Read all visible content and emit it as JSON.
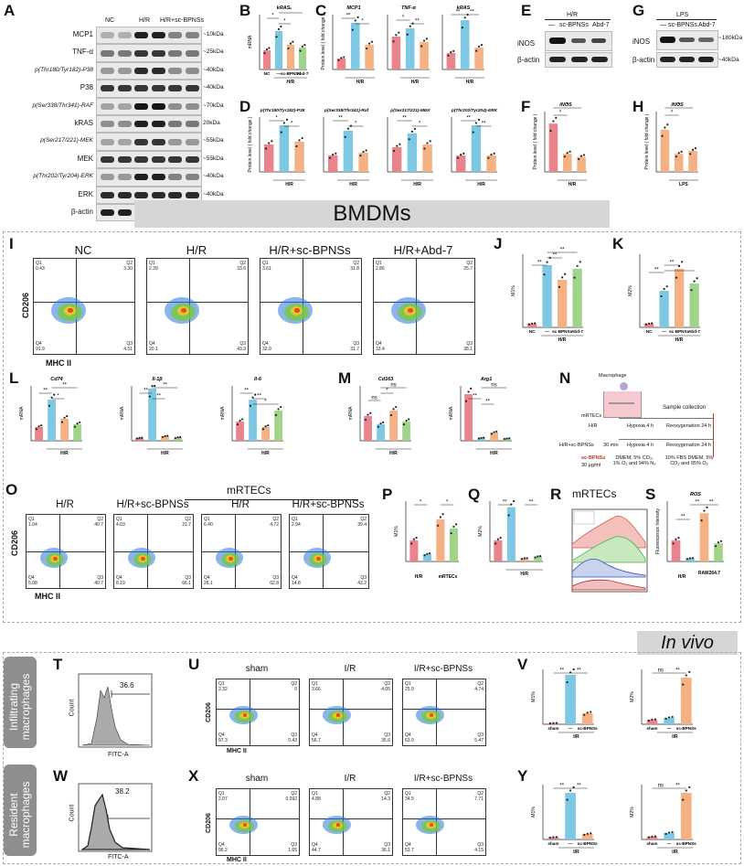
{
  "panel_letters": [
    "A",
    "B",
    "C",
    "D",
    "E",
    "F",
    "G",
    "H",
    "I",
    "J",
    "K",
    "L",
    "M",
    "N",
    "O",
    "P",
    "Q",
    "R",
    "S",
    "T",
    "U",
    "V",
    "W",
    "X",
    "Y"
  ],
  "panel_A": {
    "groups": [
      "NC",
      "H/R",
      "H/R+sc-BPNSs"
    ],
    "rows": [
      "MCP1",
      "TNF-α",
      "p(Thr180/Tyr182)-P38",
      "P38",
      "p(Ser338/Thr341)-RAF",
      "kRAS",
      "p(Ser217/221)-MEK",
      "MEK",
      "p(Thr202/Tyr204)-ERK",
      "ERK",
      "β-actin"
    ],
    "kda": [
      "~10kDa",
      "~25kDa",
      "~40kDa",
      "~40kDa",
      "~70kDa",
      "20kDa",
      "~55kDa",
      "~55kDa",
      "~40kDa",
      "~40kDa",
      "~40kDa"
    ]
  },
  "panel_B": {
    "title": "kRAS",
    "ylabel": "mRNA",
    "xlabel": "H/R",
    "ticks": [
      "NC",
      "—",
      "sc-BPNSs",
      "Abd-7"
    ]
  },
  "panel_C": {
    "titles": [
      "MCP1",
      "TNF-α",
      "kRAS"
    ],
    "ylabel": "Protein level ( fold change )",
    "xlabel": "H/R"
  },
  "panel_D": {
    "titles": [
      "p(Thr180/Tyr182)-P38",
      "p(Ser338/Thr341)-Raf",
      "p(Ser217/221)-MEK",
      "p(Thr202/Tyr204)-ERK"
    ],
    "ylabel": "Protein level ( fold change )",
    "xlabel": "H/R"
  },
  "panel_E": {
    "header": "H/R",
    "cols": [
      "—",
      "sc-BPNSs",
      "Abd-7"
    ],
    "rows": [
      "iNOS",
      "β-actin"
    ]
  },
  "panel_G": {
    "header": "LPS",
    "cols": [
      "—",
      "sc-BPNSs",
      "Abd-7"
    ],
    "rows": [
      "iNOS",
      "β-actin"
    ],
    "kda": [
      "~180kDa",
      "~40kDa"
    ]
  },
  "panel_F": {
    "title": "iNOS",
    "ylabel": "Protein level ( fold change )",
    "xlabel": "H/R"
  },
  "panel_H": {
    "title": "iNOS",
    "ylabel": "Protein level ( fold change )",
    "xlabel": "LPS"
  },
  "banner_bmdm": "BMDMs",
  "panel_I": {
    "titles": [
      "NC",
      "H/R",
      "H/R+sc-BPNSs",
      "H/R+Abd-7"
    ],
    "quads": [
      [
        "Q1",
        "0.43",
        "Q2",
        "3.30",
        "Q4",
        "91.9",
        "Q3",
        "4.51"
      ],
      [
        "Q1",
        "2.39",
        "Q2",
        "33.6",
        "Q4",
        "20.1",
        "Q3",
        "43.9"
      ],
      [
        "Q1",
        "3.61",
        "Q2",
        "31.8",
        "Q4",
        "32.9",
        "Q3",
        "31.7"
      ],
      [
        "Q1",
        "2.86",
        "Q2",
        "25.7",
        "Q4",
        "33.4",
        "Q3",
        "38.1"
      ]
    ],
    "ylabel": "CD206",
    "xlabel": "MHC II"
  },
  "panel_J": {
    "ylabel": "M1%",
    "xlabel": "H/R",
    "ticks": [
      "NC",
      "—",
      "sc-BPNSs",
      "Abd-7"
    ]
  },
  "panel_K": {
    "ylabel": "M2%",
    "xlabel": "H/R",
    "ticks": [
      "NC",
      "—",
      "sc-BPNSs",
      "Abd-7"
    ]
  },
  "panel_L": {
    "titles": [
      "Cd74",
      "Il-1β",
      "Il-6"
    ],
    "ylabel": "mRNA",
    "xlabel": "H/R"
  },
  "panel_M": {
    "titles": [
      "Cd163",
      "Arg1"
    ],
    "ylabel": "mRNA",
    "xlabel": "H/R"
  },
  "panel_N": {
    "macrophage": "Macrophage",
    "mrtec": "mRTECs",
    "hr": "H/R",
    "hrsc": "H/R+sc-BPNSs",
    "conc": "30 μg/ml",
    "min": "30 min",
    "hyp": "Hypoxia 4 h",
    "reox": "Reoxygenation 24 h",
    "sample": "Sample collection",
    "cond1": "DMEM, 5% CO₂, 1% O₂ and 94% N₂",
    "cond2": "10% FBS DMEM, 5% CO₂ and 95% O₂"
  },
  "panel_O": {
    "titles": [
      "H/R",
      "H/R+sc-BPNSs",
      "H/R",
      "H/R+sc-BPNSs"
    ],
    "header": "mRTECs",
    "ylabel": "CD206",
    "xlabel": "MHC II"
  },
  "panel_P": {
    "ylabel": "M1%",
    "xlabels": [
      "H/R",
      "mRTECs"
    ]
  },
  "panel_Q": {
    "ylabel": "M2%",
    "xlabel": "H/R"
  },
  "panel_R": {
    "title": "mRTECs"
  },
  "panel_S": {
    "title": "ROS",
    "ylabel": "Fluorescence Intensity",
    "xlabels": [
      "H/R",
      "RAW264.7"
    ]
  },
  "banner_invivo": "In vivo",
  "panel_T": {
    "side": "Infiltrating macrophages",
    "value": "36.6",
    "ylabel": "Count",
    "xlabel": "FITC-A"
  },
  "panel_U": {
    "titles": [
      "sham",
      "I/R",
      "I/R+sc-BPNSs"
    ],
    "quads": [
      [
        "Q1",
        "2.32",
        "Q2",
        "0",
        "Q4",
        "97.3",
        "Q3",
        "0.43"
      ],
      [
        "Q1",
        "3.66",
        "Q2",
        "4.05",
        "Q4",
        "56.7",
        "Q3",
        "35.6"
      ],
      [
        "Q1",
        "25.9",
        "Q2",
        "4.74",
        "Q4",
        "63.9",
        "Q3",
        "5.47"
      ]
    ],
    "ylabel": "CD206",
    "xlabel": "MHC II"
  },
  "panel_V": {
    "ylabels": [
      "M1%",
      "M2%"
    ],
    "xlabel": "I/R",
    "ticks": [
      "sham",
      "—",
      "sc-BPNSs"
    ]
  },
  "panel_W": {
    "side": "Resident macrophages",
    "value": "38.2",
    "ylabel": "Count",
    "xlabel": "FITC-A"
  },
  "panel_X": {
    "titles": [
      "sham",
      "I/R",
      "I/R+sc-BPNSs"
    ],
    "quads": [
      [
        "Q1",
        "2.07",
        "Q2",
        "0.092",
        "Q4",
        "96.2",
        "Q3",
        "1.65"
      ],
      [
        "Q1",
        "4.88",
        "Q2",
        "14.3",
        "Q4",
        "44.7",
        "Q3",
        "36.1"
      ],
      [
        "Q1",
        "34.5",
        "Q2",
        "7.71",
        "Q4",
        "53.7",
        "Q3",
        "4.15"
      ]
    ],
    "ylabel": "CD206",
    "xlabel": "MHC II"
  },
  "panel_Y": {
    "ylabels": [
      "M1%",
      "M2%"
    ],
    "xlabel": "I/R",
    "ticks": [
      "sham",
      "—",
      "sc-BPNSs"
    ]
  },
  "sig": {
    "ss": "**",
    "s": "*",
    "ns": "ns"
  },
  "colors": {
    "nc": "#e9848c",
    "hr": "#7ec8e3",
    "sc": "#f4b183",
    "abd": "#9fd48a"
  }
}
